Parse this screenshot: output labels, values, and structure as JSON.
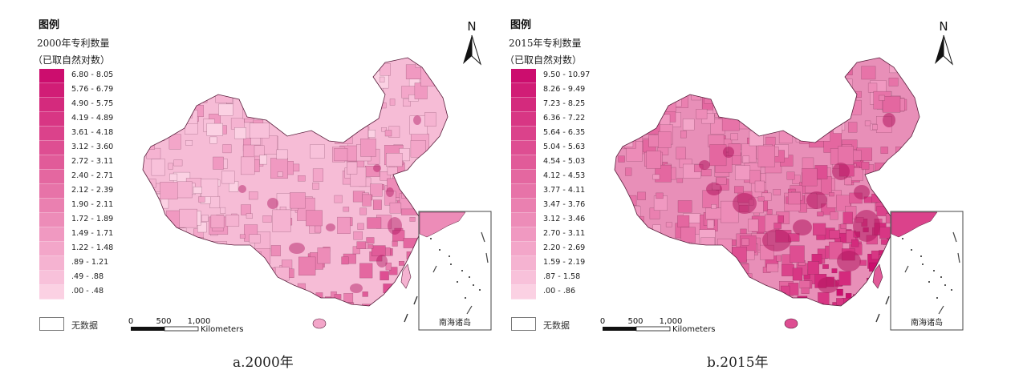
{
  "panels": [
    {
      "legend_title": "图例",
      "legend_subtitle": "2000年专利数量",
      "legend_note": "（已取自然对数）",
      "classes": [
        "6.80 - 8.05",
        "5.76 - 6.79",
        "4.90 - 5.75",
        "4.19 - 4.89",
        "3.61 - 4.18",
        "3.12 - 3.60",
        "2.72 - 3.11",
        "2.40 - 2.71",
        "2.12 - 2.39",
        "1.90 - 2.11",
        "1.72 - 1.89",
        "1.49 - 1.71",
        "1.22 - 1.48",
        ".89 - 1.21",
        ".49 - .88",
        ".00 - .48"
      ],
      "no_data_label": "无数据",
      "north_label": "N",
      "scale_ticks": [
        "0",
        "500",
        "1,000"
      ],
      "scale_unit": "Kilometers",
      "inset_label": "南海诸岛",
      "caption": "a.2000年"
    },
    {
      "legend_title": "图例",
      "legend_subtitle": "2015年专利数量",
      "legend_note": "（已取自然对数）",
      "classes": [
        "9.50 - 10.97",
        "8.26 - 9.49",
        "7.23 - 8.25",
        "6.36 - 7.22",
        "5.64 - 6.35",
        "5.04 - 5.63",
        "4.54 - 5.03",
        "4.12 - 4.53",
        "3.77 - 4.11",
        "3.47 - 3.76",
        "3.12 - 3.46",
        "2.70 - 3.11",
        "2.20 - 2.69",
        "1.59 - 2.19",
        ".87 - 1.58",
        ".00 - .86"
      ],
      "no_data_label": "无数据",
      "north_label": "N",
      "scale_ticks": [
        "0",
        "500",
        "1,000"
      ],
      "scale_unit": "Kilometers",
      "inset_label": "南海诸岛",
      "caption": "b.2015年"
    }
  ],
  "palette": [
    "#cc0d6e",
    "#d11d76",
    "#d42a7d",
    "#d83684",
    "#db428b",
    "#de4e92",
    "#e15b99",
    "#e467a0",
    "#e773a8",
    "#ea80b0",
    "#ed8cb8",
    "#f099c1",
    "#f3a6c9",
    "#f5b3d1",
    "#f8c1da",
    "#fbd1e3"
  ],
  "map_fill_2000": "#f6bcd6",
  "map_fill_2015": "#e88fb8",
  "hotspot_color": "#b0155f",
  "boundary_color": "#5a1e3c"
}
